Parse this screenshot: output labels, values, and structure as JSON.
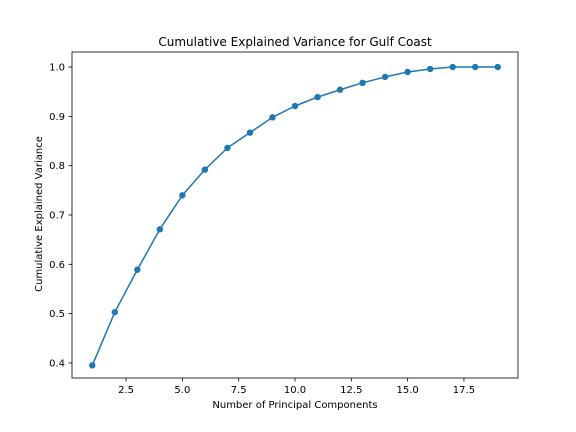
{
  "chart_data": {
    "type": "line",
    "title": "Cumulative Explained Variance for Gulf Coast",
    "xlabel": "Number of Principal Components",
    "ylabel": "Cumulative Explained Variance",
    "xlim": [
      0.1,
      19.9
    ],
    "ylim": [
      0.3695,
      1.0305
    ],
    "xticks": [
      2.5,
      5.0,
      7.5,
      10.0,
      12.5,
      15.0,
      17.5
    ],
    "xtick_labels": [
      "2.5",
      "5.0",
      "7.5",
      "10.0",
      "12.5",
      "15.0",
      "17.5"
    ],
    "yticks": [
      0.4,
      0.5,
      0.6,
      0.7,
      0.8,
      0.9,
      1.0
    ],
    "ytick_labels": [
      "0.4",
      "0.5",
      "0.6",
      "0.7",
      "0.8",
      "0.9",
      "1.0"
    ],
    "grid": false,
    "marker": "circle",
    "color": "#1f77b4",
    "series": [
      {
        "x": [
          1,
          2,
          3,
          4,
          5,
          6,
          7,
          8,
          9,
          10,
          11,
          12,
          13,
          14,
          15,
          16,
          17,
          18,
          19
        ],
        "values": [
          0.395,
          0.503,
          0.589,
          0.671,
          0.74,
          0.792,
          0.836,
          0.867,
          0.898,
          0.921,
          0.939,
          0.954,
          0.968,
          0.98,
          0.99,
          0.996,
          1.0,
          1.0,
          1.0
        ]
      }
    ]
  }
}
